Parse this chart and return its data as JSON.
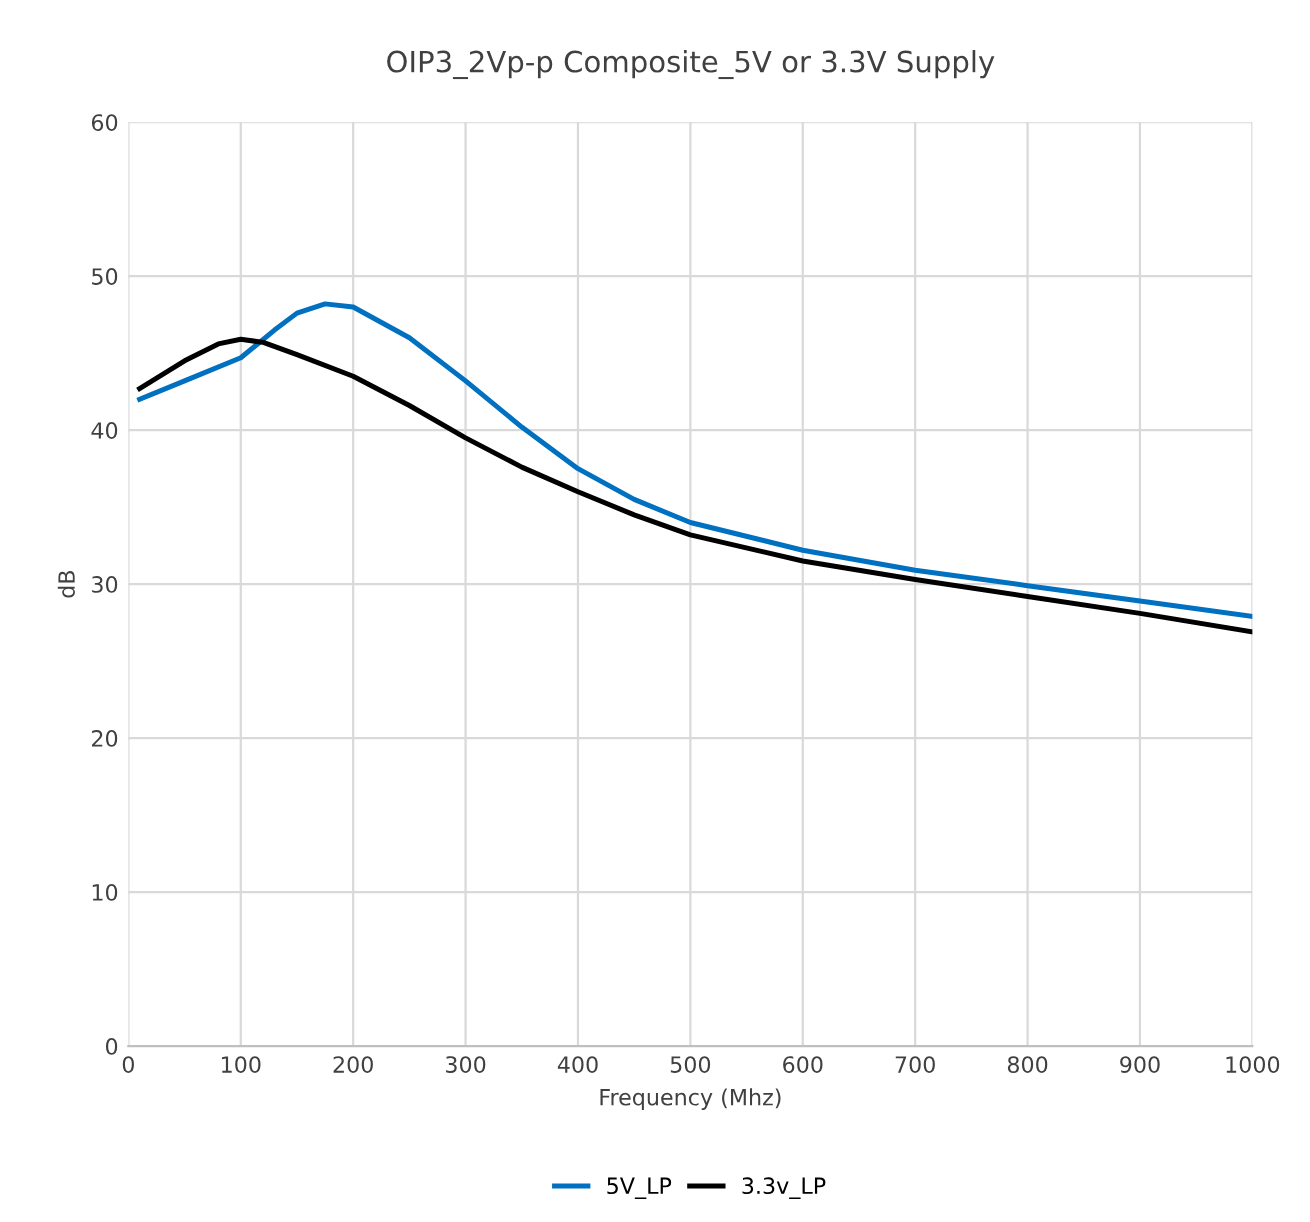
{
  "chart_data": {
    "type": "line",
    "title": "OIP3_2Vp-p Composite_5V or 3.3V Supply",
    "xlabel": "Frequency (Mhz)",
    "ylabel": "dB",
    "xlim": [
      0,
      1000
    ],
    "xticks": [
      0,
      100,
      200,
      300,
      400,
      500,
      600,
      700,
      800,
      900,
      1000
    ],
    "ylim": [
      0,
      60
    ],
    "yticks": [
      0,
      10,
      20,
      30,
      40,
      50,
      60
    ],
    "grid": true,
    "legend": "bottom",
    "marker": "none",
    "line_style": "solid",
    "series": [
      {
        "name": "5V_LP",
        "color": "#0070c0",
        "x": [
          10,
          50,
          100,
          130,
          150,
          175,
          200,
          250,
          300,
          350,
          400,
          450,
          500,
          600,
          700,
          800,
          900,
          1000
        ],
        "values": [
          42.0,
          43.2,
          44.7,
          46.5,
          47.6,
          48.2,
          48.0,
          46.0,
          43.2,
          40.2,
          37.5,
          35.5,
          34.0,
          32.2,
          30.9,
          29.9,
          28.9,
          27.9
        ]
      },
      {
        "name": "3.3v_LP",
        "color": "#000000",
        "x": [
          10,
          50,
          80,
          100,
          120,
          150,
          200,
          250,
          300,
          350,
          400,
          450,
          500,
          600,
          700,
          800,
          900,
          1000
        ],
        "values": [
          42.7,
          44.5,
          45.6,
          45.9,
          45.7,
          44.9,
          43.5,
          41.6,
          39.5,
          37.6,
          36.0,
          34.5,
          33.2,
          31.5,
          30.3,
          29.2,
          28.1,
          26.9
        ]
      }
    ]
  }
}
